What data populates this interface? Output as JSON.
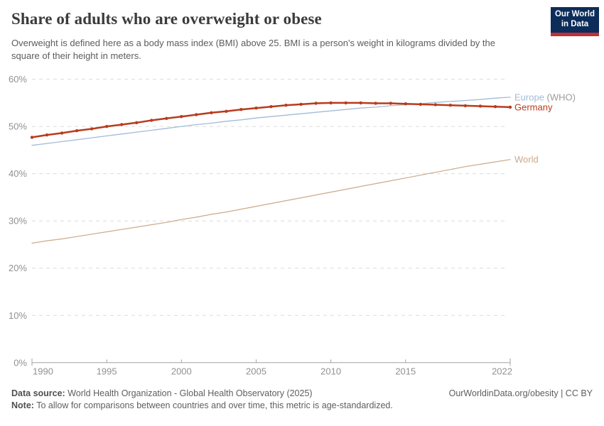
{
  "header": {
    "title": "Share of adults who are overweight or obese",
    "subtitle": "Overweight is defined here as a body mass index (BMI) above 25. BMI is a person's weight in kilograms divided by the square of their height in meters.",
    "logo": {
      "line1": "Our World",
      "line2": "in Data"
    }
  },
  "footer": {
    "source_label": "Data source:",
    "source_text": " World Health Organization - Global Health Observatory (2025)",
    "rights": "OurWorldinData.org/obesity | CC BY",
    "note_label": "Note:",
    "note_text": " To allow for comparisons between countries and over time, this metric is age-standardized."
  },
  "colors": {
    "logo_bg": "#0c2d5a",
    "logo_stripe": "#c12f39",
    "grid": "#dcdcdc",
    "axis": "#a3a3a3",
    "tick_text": "#919191",
    "title_text": "#3b3b3b",
    "body_text": "#5c5c5c"
  },
  "chart_data": {
    "type": "line",
    "title": "Share of adults who are overweight or obese",
    "xlabel": "",
    "ylabel": "",
    "xlim": [
      1990,
      2022
    ],
    "ylim": [
      0,
      60
    ],
    "grid": "horizontal-dashed",
    "legend_position": "end-of-line-labels",
    "yticks": [
      0,
      10,
      20,
      30,
      40,
      50,
      60
    ],
    "ytick_suffix": "%",
    "xticks": [
      1990,
      1995,
      2000,
      2005,
      2010,
      2015,
      2022
    ],
    "x": [
      1990,
      1991,
      1992,
      1993,
      1994,
      1995,
      1996,
      1997,
      1998,
      1999,
      2000,
      2001,
      2002,
      2003,
      2004,
      2005,
      2006,
      2007,
      2008,
      2009,
      2010,
      2011,
      2012,
      2013,
      2014,
      2015,
      2016,
      2017,
      2018,
      2019,
      2020,
      2021,
      2022
    ],
    "series": [
      {
        "name": "Europe (WHO)",
        "label": "Europe",
        "label_suffix": " (WHO)",
        "color": "#a2bbd9",
        "suffix_color": "#9b9b9b",
        "line_width": 1.3,
        "markers": false,
        "values": [
          46.0,
          46.4,
          46.8,
          47.2,
          47.6,
          48.0,
          48.4,
          48.8,
          49.2,
          49.6,
          50.0,
          50.4,
          50.7,
          51.1,
          51.4,
          51.8,
          52.1,
          52.4,
          52.7,
          53.0,
          53.3,
          53.6,
          53.9,
          54.1,
          54.4,
          54.6,
          54.8,
          55.1,
          55.3,
          55.5,
          55.7,
          56.0,
          56.2
        ]
      },
      {
        "name": "World",
        "label": "World",
        "label_suffix": "",
        "color": "#cbaa8a",
        "suffix_color": "#cbaa8a",
        "line_width": 1.2,
        "markers": false,
        "values": [
          25.3,
          25.8,
          26.2,
          26.7,
          27.2,
          27.7,
          28.2,
          28.7,
          29.2,
          29.7,
          30.3,
          30.8,
          31.4,
          31.9,
          32.5,
          33.1,
          33.7,
          34.3,
          34.9,
          35.5,
          36.1,
          36.7,
          37.3,
          37.9,
          38.5,
          39.1,
          39.7,
          40.3,
          40.9,
          41.5,
          42.0,
          42.5,
          43.0
        ]
      },
      {
        "name": "Germany",
        "label": "Germany",
        "label_suffix": "",
        "color": "#b93b1d",
        "suffix_color": "#b93b1d",
        "line_width": 2.5,
        "markers": true,
        "values": [
          47.7,
          48.2,
          48.6,
          49.1,
          49.5,
          50.0,
          50.4,
          50.8,
          51.3,
          51.7,
          52.1,
          52.5,
          52.9,
          53.2,
          53.6,
          53.9,
          54.2,
          54.5,
          54.7,
          54.9,
          55.0,
          55.0,
          55.0,
          54.9,
          54.9,
          54.8,
          54.7,
          54.6,
          54.5,
          54.4,
          54.3,
          54.2,
          54.1
        ]
      }
    ]
  }
}
